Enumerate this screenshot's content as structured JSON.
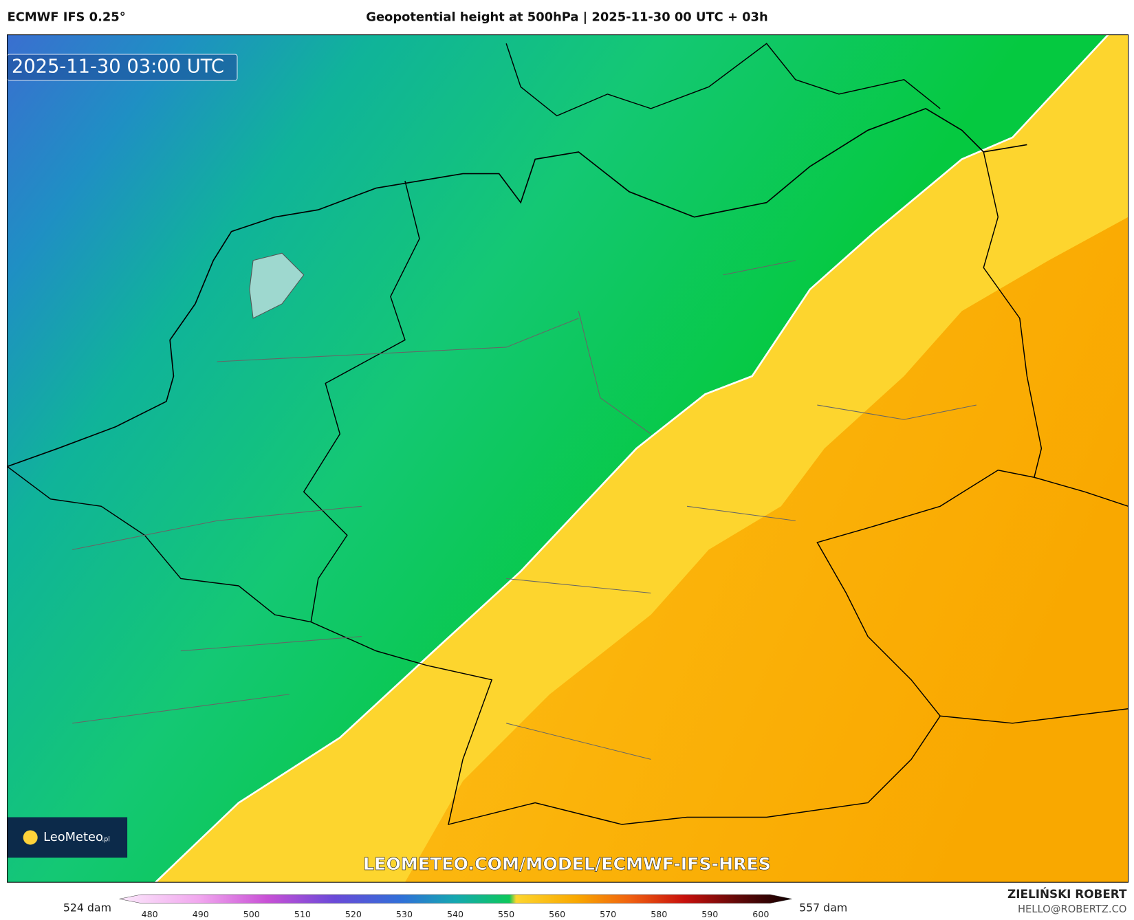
{
  "header": {
    "model": "ECMWF IFS 0.25°",
    "title": "Geopotential height at 500hPa | 2025-11-30 00 UTC + 03h"
  },
  "map": {
    "valid_time": "2025-11-30 03:00 UTC",
    "logo": "LeoMeteo",
    "logo_suffix": ".pl",
    "watermark": "LEOMETEO.COM/MODEL/ECMWF-IFS-HRES"
  },
  "colorbar": {
    "min_label": "524 dam",
    "max_label": "557 dam",
    "ticks": [
      480,
      490,
      500,
      510,
      520,
      530,
      540,
      550,
      560,
      570,
      580,
      590,
      600
    ]
  },
  "footer": {
    "author": "ZIELIŃSKI ROBERT",
    "email": "HELLO@ROBERTZ.CO"
  }
}
